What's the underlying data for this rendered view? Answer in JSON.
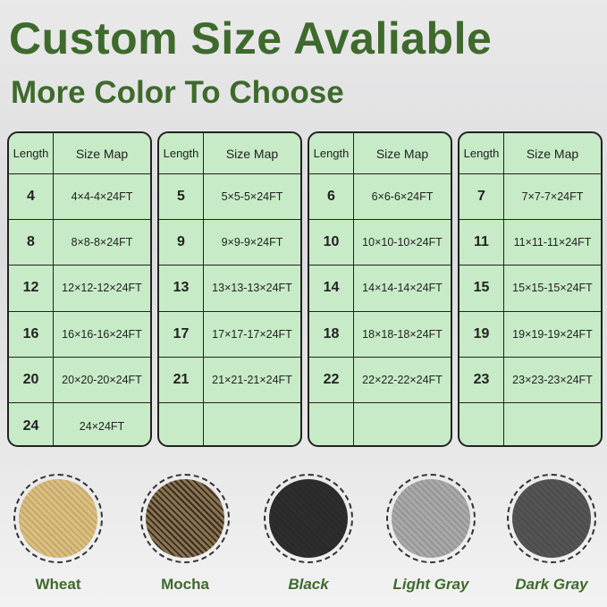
{
  "title": "Custom Size Avaliable",
  "subtitle": "More Color To Choose",
  "table_headers": {
    "length": "Length",
    "size": "Size Map"
  },
  "tables": [
    {
      "rows": [
        {
          "l": "4",
          "s": "4×4-4×24FT"
        },
        {
          "l": "8",
          "s": "8×8-8×24FT"
        },
        {
          "l": "12",
          "s": "12×12-12×24FT"
        },
        {
          "l": "16",
          "s": "16×16-16×24FT"
        },
        {
          "l": "20",
          "s": "20×20-20×24FT"
        },
        {
          "l": "24",
          "s": "24×24FT"
        }
      ]
    },
    {
      "rows": [
        {
          "l": "5",
          "s": "5×5-5×24FT"
        },
        {
          "l": "9",
          "s": "9×9-9×24FT"
        },
        {
          "l": "13",
          "s": "13×13-13×24FT"
        },
        {
          "l": "17",
          "s": "17×17-17×24FT"
        },
        {
          "l": "21",
          "s": "21×21-21×24FT"
        },
        {
          "l": "",
          "s": ""
        }
      ]
    },
    {
      "rows": [
        {
          "l": "6",
          "s": "6×6-6×24FT"
        },
        {
          "l": "10",
          "s": "10×10-10×24FT"
        },
        {
          "l": "14",
          "s": "14×14-14×24FT"
        },
        {
          "l": "18",
          "s": "18×18-18×24FT"
        },
        {
          "l": "22",
          "s": "22×22-22×24FT"
        },
        {
          "l": "",
          "s": ""
        }
      ]
    },
    {
      "rows": [
        {
          "l": "7",
          "s": "7×7-7×24FT"
        },
        {
          "l": "11",
          "s": "11×11-11×24FT"
        },
        {
          "l": "15",
          "s": "15×15-15×24FT"
        },
        {
          "l": "19",
          "s": "19×19-19×24FT"
        },
        {
          "l": "23",
          "s": "23×23-23×24FT"
        },
        {
          "l": "",
          "s": ""
        }
      ]
    }
  ],
  "colors": [
    {
      "name": "Wheat",
      "hex": "#dcbf7e"
    },
    {
      "name": "Mocha",
      "hex": "#8a7350"
    },
    {
      "name": "Black",
      "hex": "#2e2e2e"
    },
    {
      "name": "Light Gray",
      "hex": "#a9a9a9"
    },
    {
      "name": "Dark Gray",
      "hex": "#555555"
    }
  ],
  "accent": "#3e6a2c",
  "table_bg": "#c7ebc7"
}
